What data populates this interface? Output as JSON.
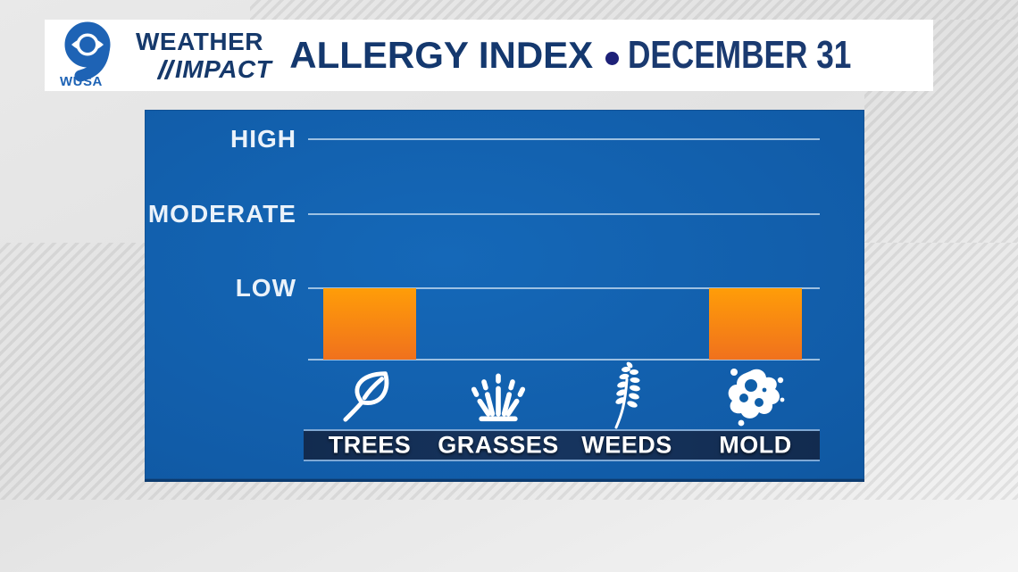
{
  "header": {
    "station": "WUSA",
    "station_number": "9",
    "brand_line1": "WEATHER",
    "brand_line2": "IMPACT",
    "title": "ALLERGY INDEX",
    "separator": "•",
    "date": "DECEMBER 31"
  },
  "colors": {
    "navy_text": "#14386E",
    "logo_blue": "#1E63B5",
    "bullet_indigo": "#1D2178",
    "panel_blue": "#115CA8",
    "gridline": "#CFE0F2",
    "bar_orange_top": "#FF9D08",
    "bar_orange_bottom": "#F0711D",
    "category_bar_navy": "#152F58",
    "category_bar_border": "#7FA8D4"
  },
  "chart_data": {
    "type": "bar",
    "title": "Allergy Index — December 31",
    "categories": [
      "TREES",
      "GRASSES",
      "WEEDS",
      "MOLD"
    ],
    "values": [
      1,
      0,
      0,
      1
    ],
    "value_levels": {
      "TREES": "LOW",
      "GRASSES": "NONE",
      "WEEDS": "NONE",
      "MOLD": "LOW"
    },
    "level_labels": [
      "HIGH",
      "MODERATE",
      "LOW"
    ],
    "level_scale": {
      "LOW": 1,
      "MODERATE": 2,
      "HIGH": 3
    },
    "ylim": [
      0,
      3.4
    ],
    "grid": true,
    "legend": "none",
    "icons": [
      "leaf-icon",
      "grass-icon",
      "weed-sprig-icon",
      "mold-spore-icon"
    ]
  }
}
